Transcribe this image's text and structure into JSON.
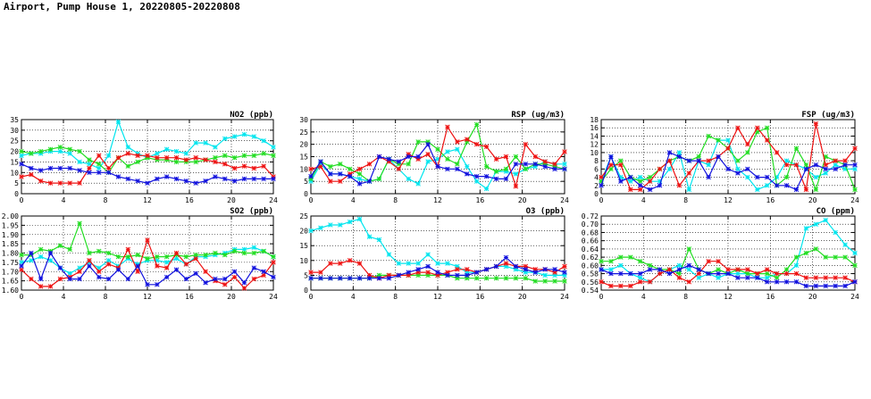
{
  "page": {
    "title": "Airport, Pump House 1, 20220805-20220808"
  },
  "series_colors": {
    "cyan": "#00e5ee",
    "green": "#22dd22",
    "red": "#ee1111",
    "blue": "#1111dd"
  },
  "chart_data": [
    {
      "type": "line",
      "title": "NO2 (ppb)",
      "xlim": [
        0,
        24
      ],
      "ylim": [
        0,
        35
      ],
      "xticks": [
        0,
        4,
        8,
        12,
        16,
        20,
        24
      ],
      "yticks": [
        0,
        5,
        10,
        15,
        20,
        25,
        30,
        35
      ],
      "series": [
        {
          "name": "cyan",
          "values": [
            18,
            19,
            19,
            20,
            20,
            19,
            15,
            14,
            12,
            18,
            34,
            22,
            19,
            17,
            19,
            21,
            20,
            19,
            24,
            24,
            22,
            26,
            27,
            28,
            27,
            25,
            22
          ]
        },
        {
          "name": "green",
          "values": [
            20,
            19,
            20,
            21,
            22,
            21,
            20,
            16,
            14,
            10,
            17,
            13,
            15,
            17,
            16,
            16,
            15,
            15,
            15,
            16,
            17,
            18,
            17,
            18,
            18,
            19,
            18
          ]
        },
        {
          "name": "red",
          "values": [
            8,
            9,
            6,
            5,
            5,
            5,
            5,
            12,
            18,
            12,
            17,
            19,
            18,
            18,
            17,
            17,
            17,
            16,
            17,
            16,
            15,
            14,
            12,
            13,
            12,
            13,
            8
          ]
        },
        {
          "name": "blue",
          "values": [
            14,
            12,
            11,
            12,
            12,
            12,
            11,
            10,
            10,
            10,
            8,
            7,
            6,
            5,
            7,
            8,
            7,
            6,
            5,
            6,
            8,
            7,
            6,
            7,
            7,
            7,
            7
          ]
        }
      ]
    },
    {
      "type": "line",
      "title": "RSP (ug/m3)",
      "xlim": [
        0,
        24
      ],
      "ylim": [
        0,
        30
      ],
      "xticks": [
        0,
        4,
        8,
        12,
        16,
        20,
        24
      ],
      "yticks": [
        0,
        5,
        10,
        15,
        20,
        25,
        30
      ],
      "series": [
        {
          "name": "cyan",
          "values": [
            5,
            12,
            8,
            8,
            7,
            6,
            5,
            6,
            14,
            10,
            6,
            4,
            13,
            14,
            17,
            18,
            11,
            5,
            2,
            9,
            9,
            8,
            10,
            11,
            13,
            12,
            12
          ]
        },
        {
          "name": "green",
          "values": [
            6,
            13,
            11,
            12,
            10,
            8,
            5,
            6,
            14,
            12,
            12,
            21,
            21,
            18,
            14,
            12,
            21,
            28,
            11,
            9,
            10,
            15,
            10,
            12,
            12,
            11,
            10
          ]
        },
        {
          "name": "red",
          "values": [
            10,
            11,
            5,
            5,
            8,
            10,
            12,
            15,
            13,
            10,
            16,
            14,
            16,
            11,
            27,
            21,
            22,
            20,
            19,
            14,
            15,
            3,
            20,
            15,
            13,
            12,
            17
          ]
        },
        {
          "name": "blue",
          "values": [
            7,
            13,
            8,
            8,
            7,
            4,
            5,
            15,
            14,
            13,
            15,
            15,
            20,
            11,
            10,
            10,
            8,
            7,
            7,
            6,
            6,
            12,
            12,
            12,
            11,
            10,
            10
          ]
        }
      ]
    },
    {
      "type": "line",
      "title": "FSP (ug/m3)",
      "xlim": [
        0,
        24
      ],
      "ylim": [
        0,
        18
      ],
      "xticks": [
        0,
        4,
        8,
        12,
        16,
        20,
        24
      ],
      "yticks": [
        0,
        2,
        4,
        6,
        8,
        10,
        12,
        14,
        16,
        18
      ],
      "series": [
        {
          "name": "cyan",
          "values": [
            3,
            9,
            4,
            3,
            4,
            3,
            3,
            6,
            10,
            1,
            8,
            7,
            13,
            13,
            6,
            4,
            1,
            2,
            4,
            8,
            7,
            6,
            4,
            5,
            7,
            6,
            6
          ]
        },
        {
          "name": "green",
          "values": [
            3,
            6,
            8,
            4,
            3,
            4,
            6,
            8,
            9,
            8,
            9,
            14,
            13,
            11,
            8,
            10,
            15,
            16,
            2,
            4,
            11,
            7,
            1,
            9,
            8,
            7,
            1
          ]
        },
        {
          "name": "red",
          "values": [
            4,
            7,
            7,
            1,
            1,
            3,
            6,
            8,
            2,
            5,
            8,
            8,
            9,
            11,
            16,
            12,
            16,
            13,
            10,
            7,
            7,
            1,
            17,
            7,
            8,
            8,
            11
          ]
        },
        {
          "name": "blue",
          "values": [
            2,
            9,
            3,
            4,
            2,
            1,
            2,
            10,
            9,
            8,
            8,
            4,
            9,
            6,
            5,
            6,
            4,
            4,
            2,
            2,
            1,
            6,
            7,
            6,
            6,
            7,
            7
          ]
        }
      ]
    },
    {
      "type": "line",
      "title": "SO2 (ppb)",
      "xlim": [
        0,
        24
      ],
      "ylim": [
        1.6,
        2.0
      ],
      "xticks": [
        0,
        4,
        8,
        12,
        16,
        20,
        24
      ],
      "yticks": [
        1.6,
        1.65,
        1.7,
        1.75,
        1.8,
        1.85,
        1.9,
        1.95,
        2.0
      ],
      "series": [
        {
          "name": "cyan",
          "values": [
            1.75,
            1.76,
            1.78,
            1.76,
            1.72,
            1.69,
            1.72,
            1.75,
            1.72,
            1.76,
            1.73,
            1.77,
            1.74,
            1.76,
            1.76,
            1.75,
            1.77,
            1.74,
            1.78,
            1.78,
            1.79,
            1.8,
            1.82,
            1.82,
            1.83,
            1.81,
            1.78
          ]
        },
        {
          "name": "green",
          "values": [
            1.79,
            1.79,
            1.82,
            1.81,
            1.84,
            1.82,
            1.96,
            1.8,
            1.81,
            1.8,
            1.78,
            1.78,
            1.79,
            1.77,
            1.78,
            1.78,
            1.79,
            1.78,
            1.79,
            1.79,
            1.8,
            1.79,
            1.81,
            1.8,
            1.8,
            1.81,
            1.78
          ]
        },
        {
          "name": "red",
          "values": [
            1.71,
            1.66,
            1.62,
            1.62,
            1.66,
            1.67,
            1.7,
            1.76,
            1.7,
            1.74,
            1.72,
            1.82,
            1.7,
            1.87,
            1.73,
            1.72,
            1.8,
            1.74,
            1.77,
            1.7,
            1.65,
            1.63,
            1.67,
            1.61,
            1.66,
            1.68,
            1.75
          ]
        },
        {
          "name": "blue",
          "values": [
            1.73,
            1.8,
            1.66,
            1.8,
            1.72,
            1.66,
            1.66,
            1.73,
            1.67,
            1.66,
            1.71,
            1.66,
            1.73,
            1.63,
            1.63,
            1.67,
            1.71,
            1.66,
            1.69,
            1.64,
            1.66,
            1.66,
            1.7,
            1.64,
            1.72,
            1.7,
            1.67
          ]
        }
      ]
    },
    {
      "type": "line",
      "title": "O3 (ppb)",
      "xlim": [
        0,
        24
      ],
      "ylim": [
        0,
        25
      ],
      "xticks": [
        0,
        4,
        8,
        12,
        16,
        20,
        24
      ],
      "yticks": [
        0,
        5,
        10,
        15,
        20,
        25
      ],
      "series": [
        {
          "name": "cyan",
          "values": [
            20,
            21,
            22,
            22,
            23,
            24,
            18,
            17,
            12,
            9,
            9,
            9,
            12,
            9,
            9,
            8,
            6,
            6,
            7,
            8,
            8,
            7,
            6,
            6,
            5,
            5,
            5
          ]
        },
        {
          "name": "green",
          "values": [
            4,
            4,
            4,
            4,
            4,
            4,
            4,
            5,
            5,
            5,
            5,
            5,
            5,
            5,
            5,
            4,
            4,
            4,
            4,
            4,
            4,
            4,
            4,
            3,
            3,
            3,
            3
          ]
        },
        {
          "name": "red",
          "values": [
            6,
            6,
            9,
            9,
            10,
            9,
            5,
            4,
            5,
            5,
            5,
            6,
            6,
            5,
            6,
            7,
            7,
            6,
            7,
            8,
            9,
            8,
            8,
            7,
            7,
            6,
            8
          ]
        },
        {
          "name": "blue",
          "values": [
            4,
            4,
            4,
            4,
            4,
            4,
            4,
            4,
            4,
            5,
            6,
            7,
            8,
            6,
            5,
            5,
            5,
            6,
            7,
            8,
            11,
            8,
            7,
            6,
            7,
            7,
            6
          ]
        }
      ]
    },
    {
      "type": "line",
      "title": "CO (ppm)",
      "xlim": [
        0,
        24
      ],
      "ylim": [
        0.54,
        0.72
      ],
      "xticks": [
        0,
        4,
        8,
        12,
        16,
        20,
        24
      ],
      "yticks": [
        0.54,
        0.56,
        0.58,
        0.6,
        0.62,
        0.64,
        0.66,
        0.68,
        0.7,
        0.72
      ],
      "series": [
        {
          "name": "cyan",
          "values": [
            0.59,
            0.59,
            0.6,
            0.58,
            0.57,
            0.56,
            0.58,
            0.59,
            0.6,
            0.59,
            0.57,
            0.58,
            0.57,
            0.58,
            0.58,
            0.58,
            0.57,
            0.57,
            0.58,
            0.58,
            0.6,
            0.69,
            0.7,
            0.71,
            0.68,
            0.65,
            0.63
          ]
        },
        {
          "name": "green",
          "values": [
            0.61,
            0.61,
            0.62,
            0.62,
            0.61,
            0.6,
            0.59,
            0.59,
            0.58,
            0.64,
            0.59,
            0.58,
            0.59,
            0.58,
            0.59,
            0.58,
            0.58,
            0.58,
            0.57,
            0.59,
            0.62,
            0.63,
            0.64,
            0.62,
            0.62,
            0.62,
            0.6
          ]
        },
        {
          "name": "red",
          "values": [
            0.56,
            0.55,
            0.55,
            0.55,
            0.56,
            0.56,
            0.58,
            0.59,
            0.57,
            0.56,
            0.58,
            0.61,
            0.61,
            0.59,
            0.59,
            0.59,
            0.58,
            0.59,
            0.58,
            0.58,
            0.58,
            0.57,
            0.57,
            0.57,
            0.57,
            0.57,
            0.56
          ]
        },
        {
          "name": "blue",
          "values": [
            0.59,
            0.58,
            0.58,
            0.58,
            0.58,
            0.59,
            0.59,
            0.58,
            0.59,
            0.6,
            0.59,
            0.58,
            0.58,
            0.58,
            0.57,
            0.57,
            0.57,
            0.56,
            0.56,
            0.56,
            0.56,
            0.55,
            0.55,
            0.55,
            0.55,
            0.55,
            0.56
          ]
        }
      ]
    }
  ]
}
